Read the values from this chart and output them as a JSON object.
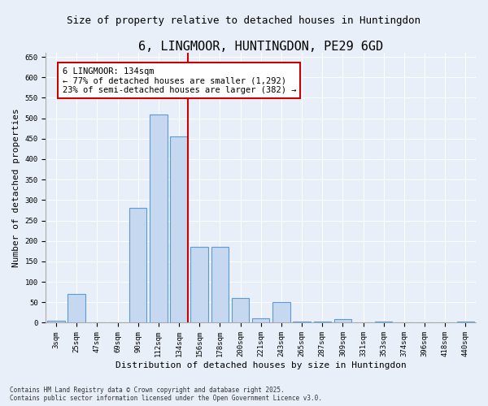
{
  "title": "6, LINGMOOR, HUNTINGDON, PE29 6GD",
  "subtitle": "Size of property relative to detached houses in Huntingdon",
  "xlabel": "Distribution of detached houses by size in Huntingdon",
  "ylabel": "Number of detached properties",
  "categories": [
    "3sqm",
    "25sqm",
    "47sqm",
    "69sqm",
    "90sqm",
    "112sqm",
    "134sqm",
    "156sqm",
    "178sqm",
    "200sqm",
    "221sqm",
    "243sqm",
    "265sqm",
    "287sqm",
    "309sqm",
    "331sqm",
    "353sqm",
    "374sqm",
    "396sqm",
    "418sqm",
    "440sqm"
  ],
  "values": [
    5,
    70,
    0,
    0,
    280,
    510,
    455,
    185,
    185,
    60,
    10,
    50,
    3,
    3,
    8,
    0,
    3,
    0,
    0,
    0,
    3
  ],
  "bar_color": "#c5d8f0",
  "bar_edge_color": "#5b9bd5",
  "marker_index": 6,
  "marker_label": "6 LINGMOOR: 134sqm",
  "marker_line_color": "#cc0000",
  "annotation_line1": "6 LINGMOOR: 134sqm",
  "annotation_line2": "← 77% of detached houses are smaller (1,292)",
  "annotation_line3": "23% of semi-detached houses are larger (382) →",
  "box_edge_color": "#cc0000",
  "ylim": [
    0,
    660
  ],
  "yticks": [
    0,
    50,
    100,
    150,
    200,
    250,
    300,
    350,
    400,
    450,
    500,
    550,
    600,
    650
  ],
  "background_color": "#e8eff8",
  "plot_background_color": "#e8eff8",
  "footer_text": "Contains HM Land Registry data © Crown copyright and database right 2025.\nContains public sector information licensed under the Open Government Licence v3.0.",
  "title_fontsize": 11,
  "subtitle_fontsize": 9,
  "axis_label_fontsize": 8,
  "tick_fontsize": 6.5,
  "annotation_fontsize": 7.5,
  "footer_fontsize": 5.5
}
